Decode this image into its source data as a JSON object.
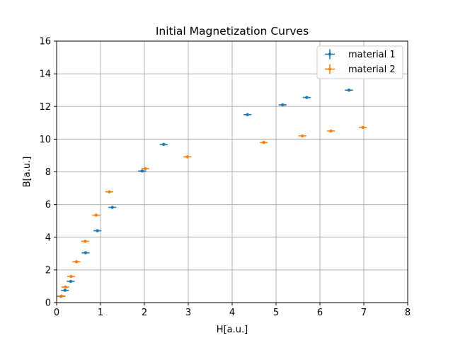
{
  "chart_data": {
    "type": "scatter",
    "title": "Initial Magnetization Curves",
    "xlabel": "H[a.u.]",
    "ylabel": "B[a.u.]",
    "xlim": [
      0,
      8
    ],
    "ylim": [
      0,
      16
    ],
    "xticks": [
      "0",
      "1",
      "2",
      "3",
      "4",
      "5",
      "6",
      "7",
      "8"
    ],
    "yticks": [
      "0",
      "2",
      "4",
      "6",
      "8",
      "10",
      "12",
      "14",
      "16"
    ],
    "grid": true,
    "legend_position": "top-right",
    "error_bars": true,
    "series": [
      {
        "name": "material 1",
        "color": "#1f77b4",
        "x": [
          0.1,
          0.19,
          0.32,
          0.66,
          0.93,
          1.27,
          1.95,
          2.44,
          4.35,
          5.15,
          5.7,
          6.66
        ],
        "y": [
          0.38,
          0.75,
          1.3,
          3.05,
          4.4,
          5.83,
          8.05,
          9.68,
          11.5,
          12.1,
          12.55,
          13.0
        ],
        "xerr": 0.09,
        "yerr": 0.04
      },
      {
        "name": "material 2",
        "color": "#ff7f0e",
        "x": [
          0.11,
          0.2,
          0.33,
          0.45,
          0.65,
          0.9,
          1.2,
          2.02,
          2.98,
          4.72,
          5.6,
          6.25,
          6.98
        ],
        "y": [
          0.4,
          0.95,
          1.6,
          2.5,
          3.75,
          5.35,
          6.78,
          8.2,
          8.92,
          9.8,
          10.2,
          10.5,
          10.72
        ],
        "xerr": 0.09,
        "yerr": 0.04
      }
    ]
  }
}
